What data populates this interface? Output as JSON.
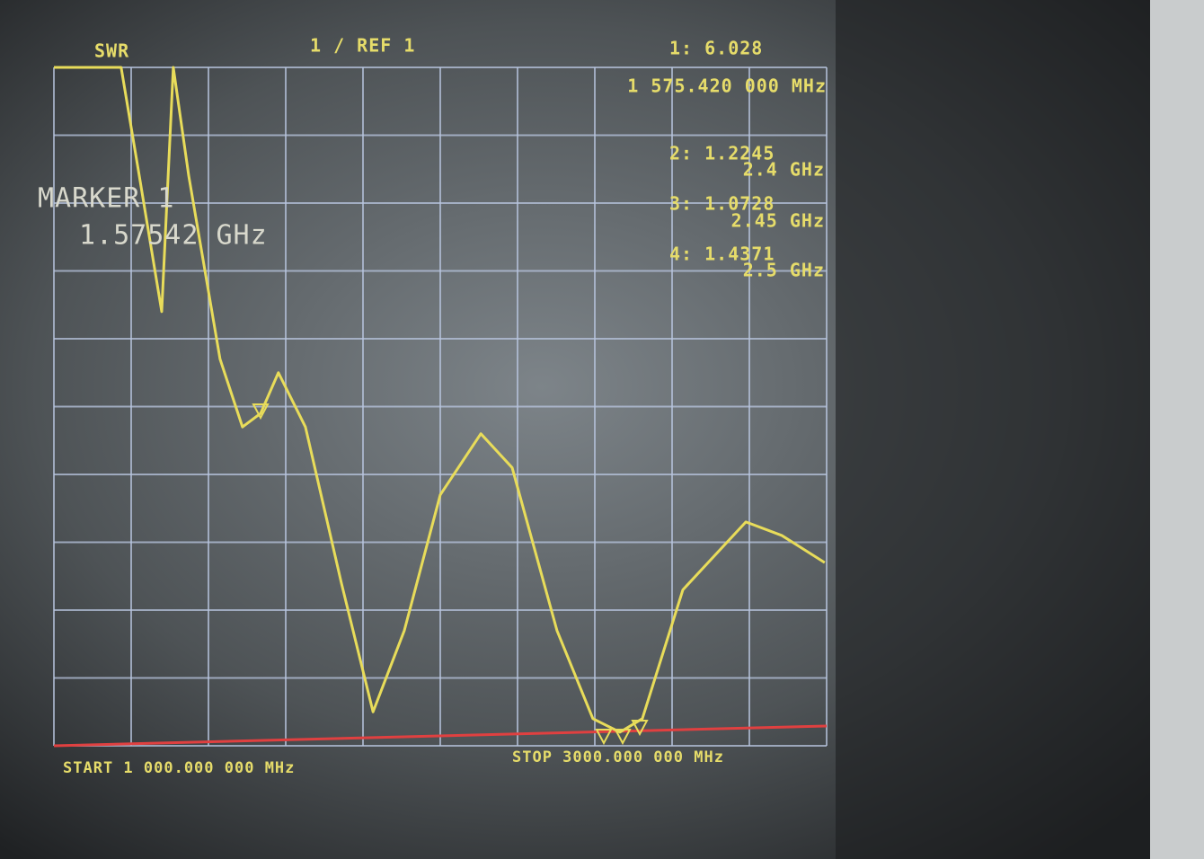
{
  "chart_data": {
    "type": "line",
    "title": "SWR",
    "scale_label": "1 / REF 1",
    "marker_readouts": [
      {
        "label": "1: 6.028",
        "freq": "1 575.420 000 MHz"
      },
      {
        "label": "2: 1.2245",
        "freq": "2.4 GHz"
      },
      {
        "label": "3: 1.0728",
        "freq": "2.45 GHz"
      },
      {
        "label": "4: 1.4371",
        "freq": "2.5 GHz"
      }
    ],
    "active_marker": "MARKER 1",
    "active_marker_freq": "1.57542 GHz",
    "start_label": "START 1 000.000 000 MHz",
    "stop_label": "STOP 3000.000 000 MHz",
    "x": [
      1000,
      1174,
      1221,
      1279,
      1309,
      1349,
      1430,
      1488,
      1535,
      1581,
      1651,
      1744,
      1826,
      1907,
      2000,
      2105,
      2186,
      2302,
      2395,
      2465,
      2523,
      2628,
      2791,
      2884,
      2995
    ],
    "values": [
      11,
      11,
      9.4,
      7.4,
      11,
      9.4,
      6.7,
      5.7,
      5.9,
      6.5,
      5.7,
      3.4,
      1.5,
      2.7,
      4.7,
      5.6,
      5.1,
      2.7,
      1.4,
      1.2,
      1.4,
      3.3,
      4.3,
      4.1,
      3.7
    ],
    "color": "#e8dc5a",
    "xlim": [
      1000,
      3000
    ],
    "ylim": [
      1,
      11
    ],
    "grid": true
  }
}
